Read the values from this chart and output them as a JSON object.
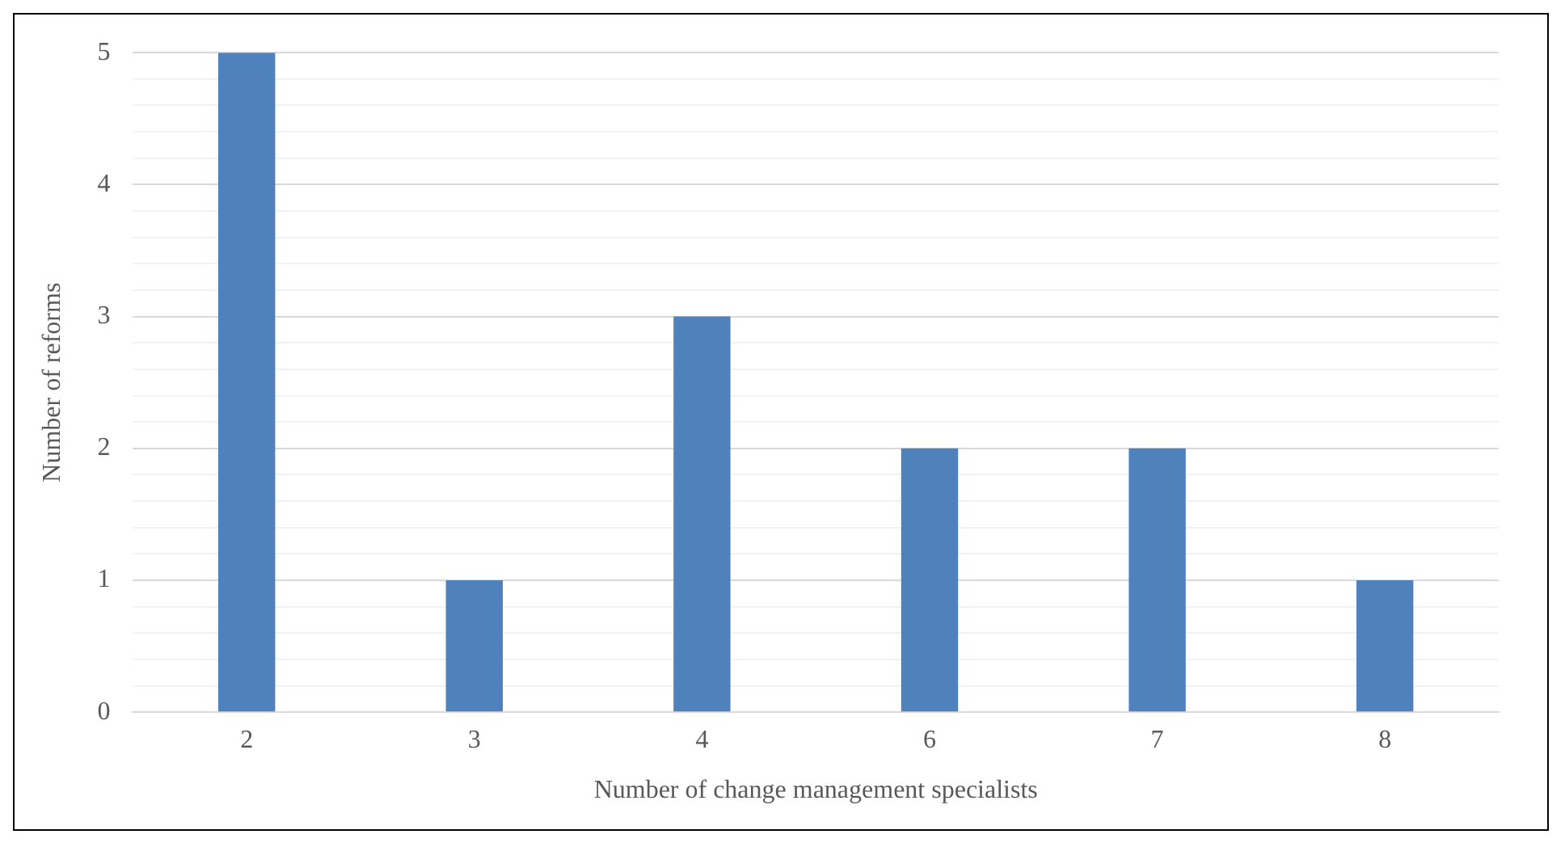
{
  "chart_data": {
    "type": "bar",
    "xlabel": "Number of change management specialists",
    "ylabel": "Number of reforms",
    "categories": [
      "2",
      "3",
      "4",
      "6",
      "7",
      "8"
    ],
    "values": [
      5,
      1,
      3,
      2,
      2,
      1
    ],
    "color": "#4f81bd",
    "ylim": [
      0,
      5
    ],
    "yticks": [
      0,
      {
        "value": 0.2,
        "label": null
      },
      {
        "value": 0.4,
        "label": null
      },
      {
        "value": 0.6,
        "label": null
      },
      {
        "value": 0.8,
        "label": null
      },
      1,
      {
        "value": 1.2,
        "label": null
      },
      {
        "value": 1.4,
        "label": null
      },
      {
        "value": 1.6,
        "label": null
      },
      {
        "value": 1.8,
        "label": null
      },
      2,
      {
        "value": 2.2,
        "label": null
      },
      {
        "value": 2.4,
        "label": null
      },
      {
        "value": 2.6,
        "label": null
      },
      {
        "value": 2.8,
        "label": null
      },
      3,
      {
        "value": 3.2,
        "label": null
      },
      {
        "value": 3.4,
        "label": null
      },
      {
        "value": 3.6,
        "label": null
      },
      {
        "value": 3.8,
        "label": null
      },
      4,
      {
        "value": 4.2,
        "label": null
      },
      {
        "value": 4.4,
        "label": null
      },
      {
        "value": 4.6,
        "label": null
      },
      {
        "value": 4.8,
        "label": null
      },
      5
    ],
    "grid": "y",
    "legend": false
  }
}
